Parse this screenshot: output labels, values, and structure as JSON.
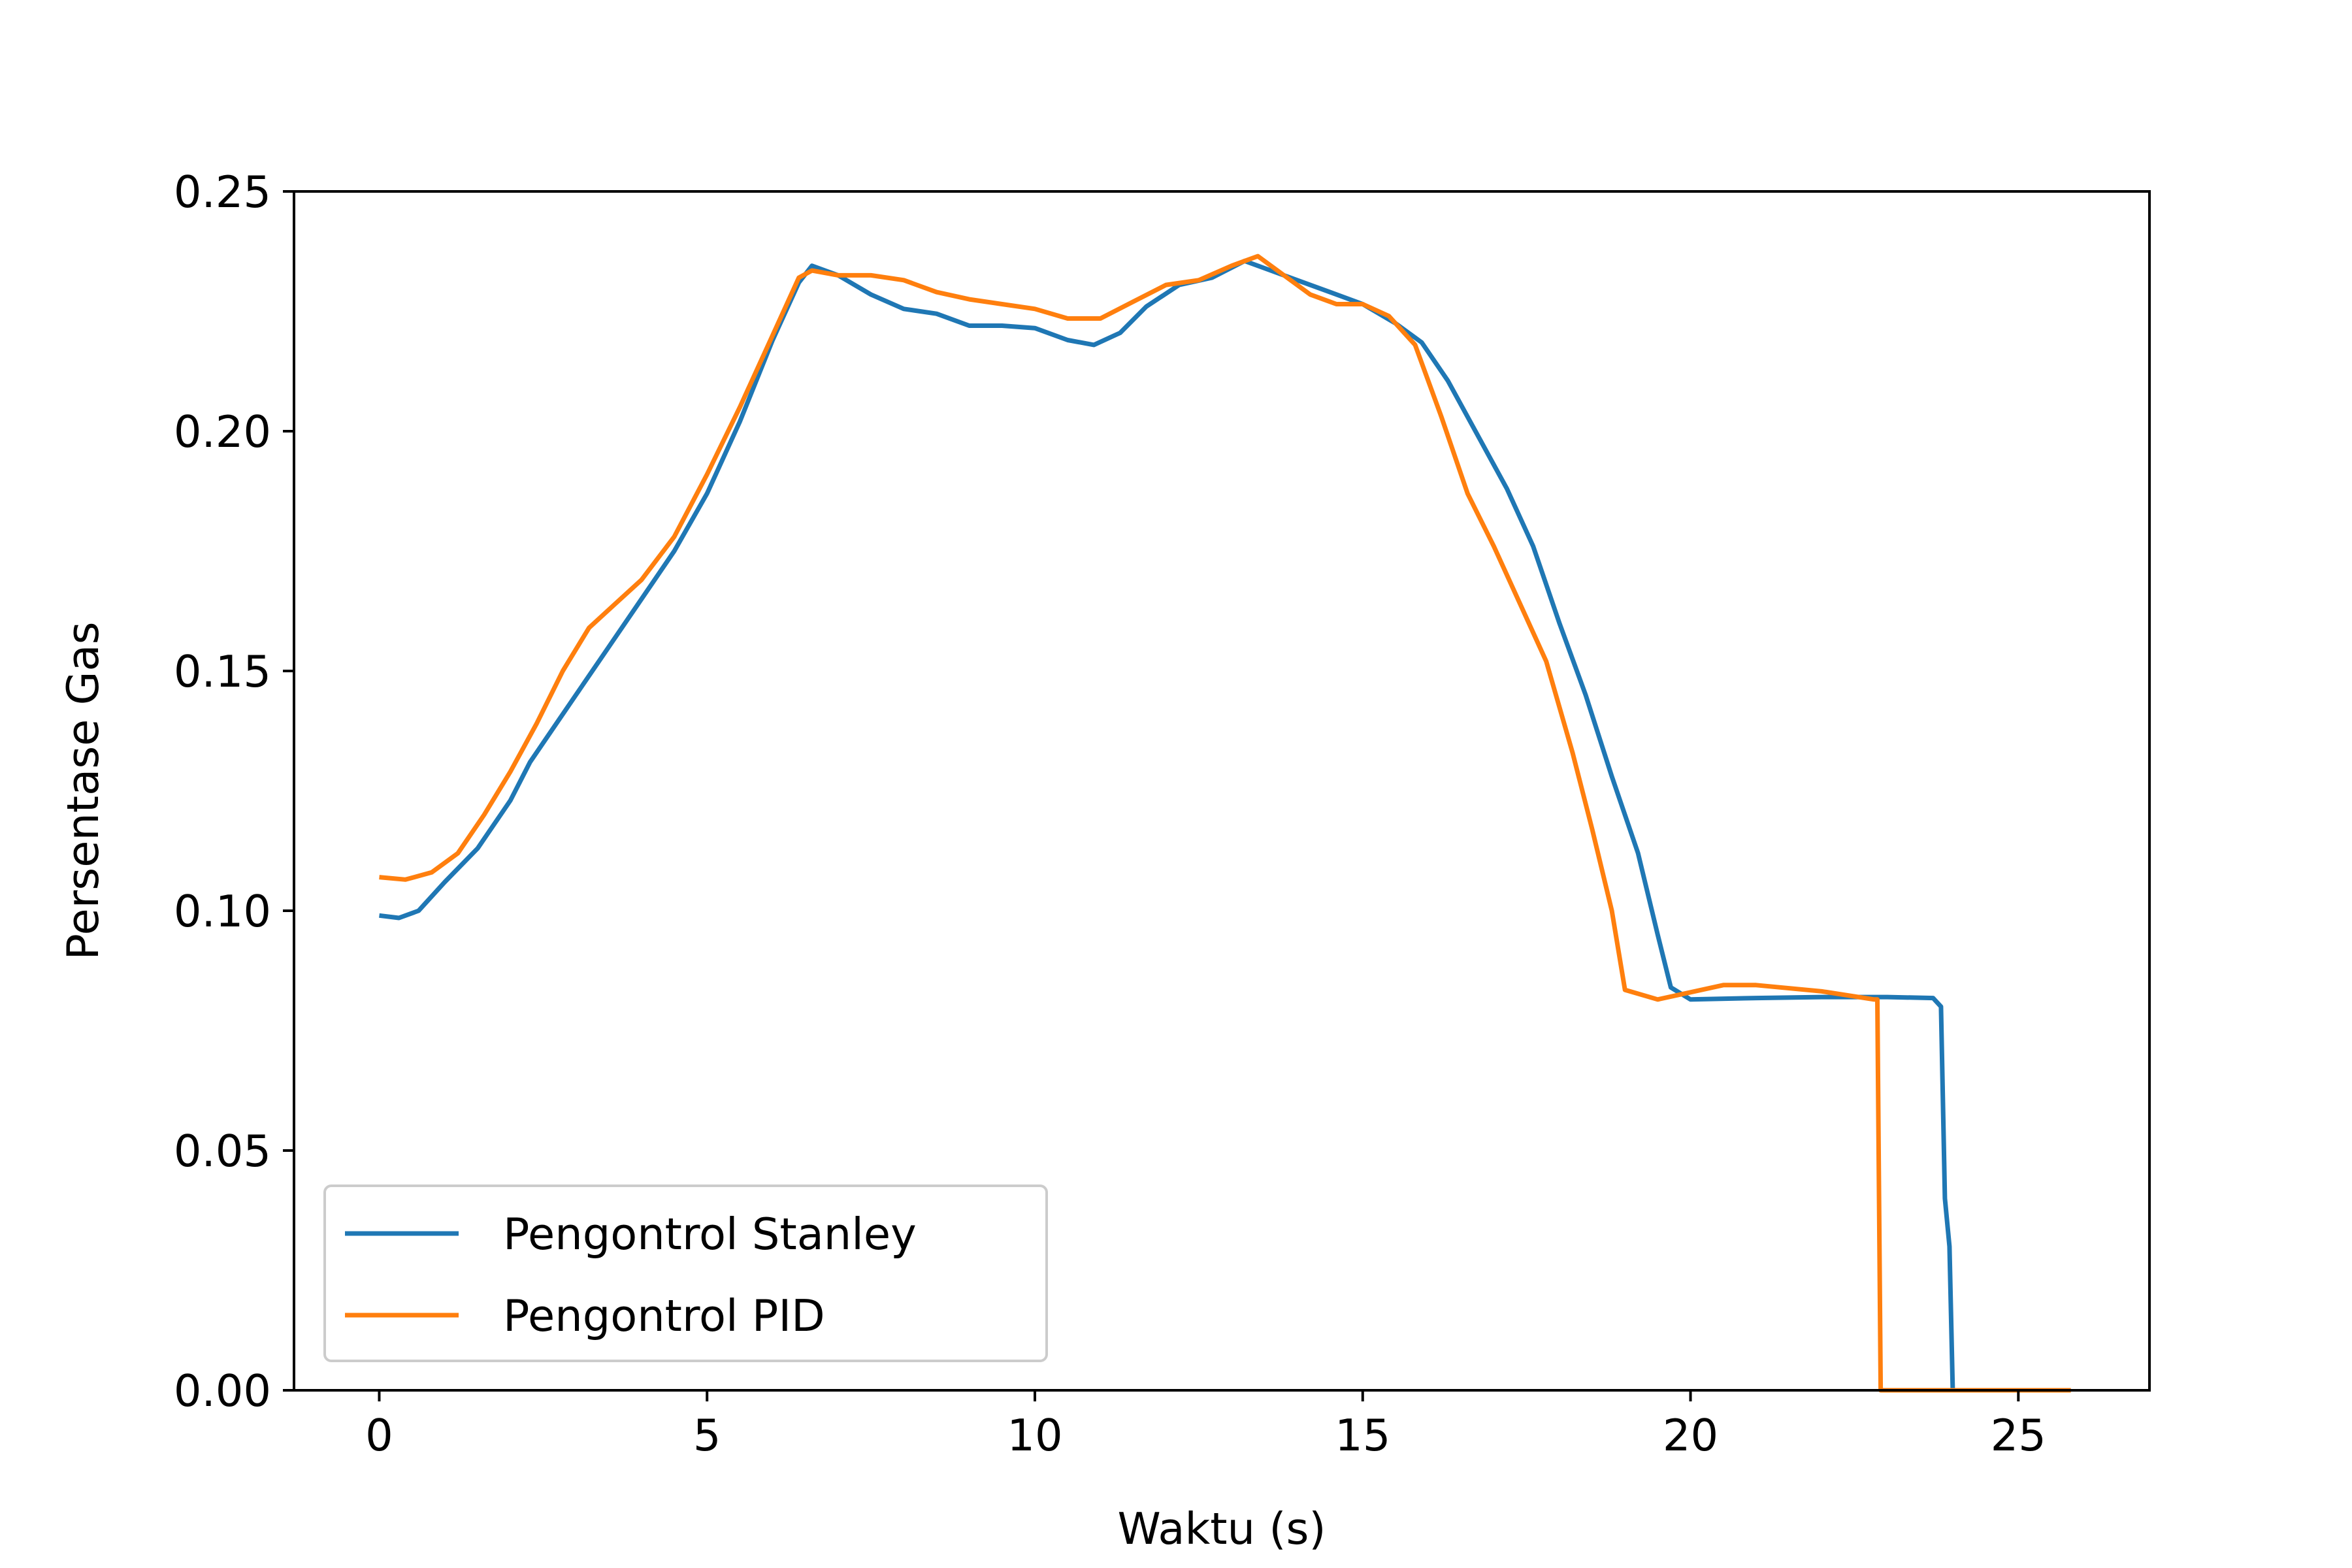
{
  "chart_data": {
    "type": "line",
    "title": "",
    "xlabel": "Waktu (s)",
    "ylabel": "Persentase Gas",
    "xlim": [
      -1.3,
      27.0
    ],
    "ylim": [
      0.0,
      0.25
    ],
    "xticks": [
      0,
      5,
      10,
      15,
      20,
      25
    ],
    "xtick_labels": [
      "0",
      "5",
      "10",
      "15",
      "20",
      "25"
    ],
    "yticks": [
      0.0,
      0.05,
      0.1,
      0.15,
      0.2,
      0.25
    ],
    "ytick_labels": [
      "0.00",
      "0.05",
      "0.10",
      "0.15",
      "0.20",
      "0.25"
    ],
    "grid": false,
    "legend_position": "lower-left",
    "series": [
      {
        "name": "Pengontrol Stanley",
        "color": "#1f77b4",
        "points": [
          [
            0.0,
            0.099
          ],
          [
            0.3,
            0.0985
          ],
          [
            0.6,
            0.1
          ],
          [
            1.0,
            0.106
          ],
          [
            1.5,
            0.113
          ],
          [
            2.0,
            0.123
          ],
          [
            2.3,
            0.131
          ],
          [
            2.6,
            0.137
          ],
          [
            3.0,
            0.145
          ],
          [
            3.5,
            0.155
          ],
          [
            4.0,
            0.165
          ],
          [
            4.5,
            0.175
          ],
          [
            5.0,
            0.187
          ],
          [
            5.5,
            0.202
          ],
          [
            6.0,
            0.219
          ],
          [
            6.4,
            0.231
          ],
          [
            6.6,
            0.2345
          ],
          [
            7.0,
            0.2325
          ],
          [
            7.5,
            0.2285
          ],
          [
            8.0,
            0.2255
          ],
          [
            8.5,
            0.2245
          ],
          [
            9.0,
            0.222
          ],
          [
            9.5,
            0.222
          ],
          [
            10.0,
            0.2215
          ],
          [
            10.5,
            0.219
          ],
          [
            10.9,
            0.218
          ],
          [
            11.3,
            0.2205
          ],
          [
            11.7,
            0.226
          ],
          [
            12.2,
            0.2305
          ],
          [
            12.7,
            0.232
          ],
          [
            13.2,
            0.2355
          ],
          [
            13.6,
            0.2335
          ],
          [
            14.0,
            0.2315
          ],
          [
            14.5,
            0.229
          ],
          [
            15.0,
            0.2265
          ],
          [
            15.5,
            0.2225
          ],
          [
            15.9,
            0.2185
          ],
          [
            16.3,
            0.2105
          ],
          [
            16.8,
            0.198
          ],
          [
            17.2,
            0.188
          ],
          [
            17.6,
            0.176
          ],
          [
            18.0,
            0.16
          ],
          [
            18.4,
            0.145
          ],
          [
            18.8,
            0.128
          ],
          [
            19.2,
            0.112
          ],
          [
            19.5,
            0.095
          ],
          [
            19.7,
            0.084
          ],
          [
            20.0,
            0.0815
          ],
          [
            21.0,
            0.0818
          ],
          [
            22.0,
            0.082
          ],
          [
            23.0,
            0.082
          ],
          [
            23.7,
            0.0818
          ],
          [
            23.82,
            0.08
          ],
          [
            23.88,
            0.04
          ],
          [
            23.95,
            0.03
          ],
          [
            24.0,
            0.0
          ],
          [
            25.8,
            0.0
          ]
        ]
      },
      {
        "name": "Pengontrol PID",
        "color": "#ff7f0e",
        "points": [
          [
            0.0,
            0.107
          ],
          [
            0.4,
            0.1065
          ],
          [
            0.8,
            0.108
          ],
          [
            1.2,
            0.112
          ],
          [
            1.6,
            0.12
          ],
          [
            2.0,
            0.129
          ],
          [
            2.4,
            0.139
          ],
          [
            2.8,
            0.15
          ],
          [
            3.2,
            0.159
          ],
          [
            3.6,
            0.164
          ],
          [
            4.0,
            0.169
          ],
          [
            4.5,
            0.178
          ],
          [
            5.0,
            0.191
          ],
          [
            5.5,
            0.205
          ],
          [
            6.0,
            0.22
          ],
          [
            6.4,
            0.232
          ],
          [
            6.6,
            0.2335
          ],
          [
            7.0,
            0.2325
          ],
          [
            7.5,
            0.2325
          ],
          [
            8.0,
            0.2315
          ],
          [
            8.5,
            0.229
          ],
          [
            9.0,
            0.2275
          ],
          [
            9.5,
            0.2265
          ],
          [
            10.0,
            0.2255
          ],
          [
            10.5,
            0.2235
          ],
          [
            11.0,
            0.2235
          ],
          [
            11.5,
            0.227
          ],
          [
            12.0,
            0.2305
          ],
          [
            12.5,
            0.2315
          ],
          [
            13.0,
            0.2345
          ],
          [
            13.4,
            0.2365
          ],
          [
            13.8,
            0.2325
          ],
          [
            14.2,
            0.2285
          ],
          [
            14.6,
            0.2265
          ],
          [
            15.0,
            0.2265
          ],
          [
            15.4,
            0.224
          ],
          [
            15.8,
            0.218
          ],
          [
            16.2,
            0.203
          ],
          [
            16.6,
            0.187
          ],
          [
            17.0,
            0.176
          ],
          [
            17.4,
            0.164
          ],
          [
            17.8,
            0.152
          ],
          [
            18.2,
            0.133
          ],
          [
            18.5,
            0.117
          ],
          [
            18.8,
            0.1
          ],
          [
            19.0,
            0.0835
          ],
          [
            19.5,
            0.0815
          ],
          [
            20.0,
            0.083
          ],
          [
            20.5,
            0.0845
          ],
          [
            21.0,
            0.0845
          ],
          [
            22.0,
            0.0832
          ],
          [
            22.8,
            0.0815
          ],
          [
            22.85,
            0.0815
          ],
          [
            22.9,
            0.0
          ],
          [
            25.8,
            0.0
          ]
        ]
      }
    ]
  }
}
